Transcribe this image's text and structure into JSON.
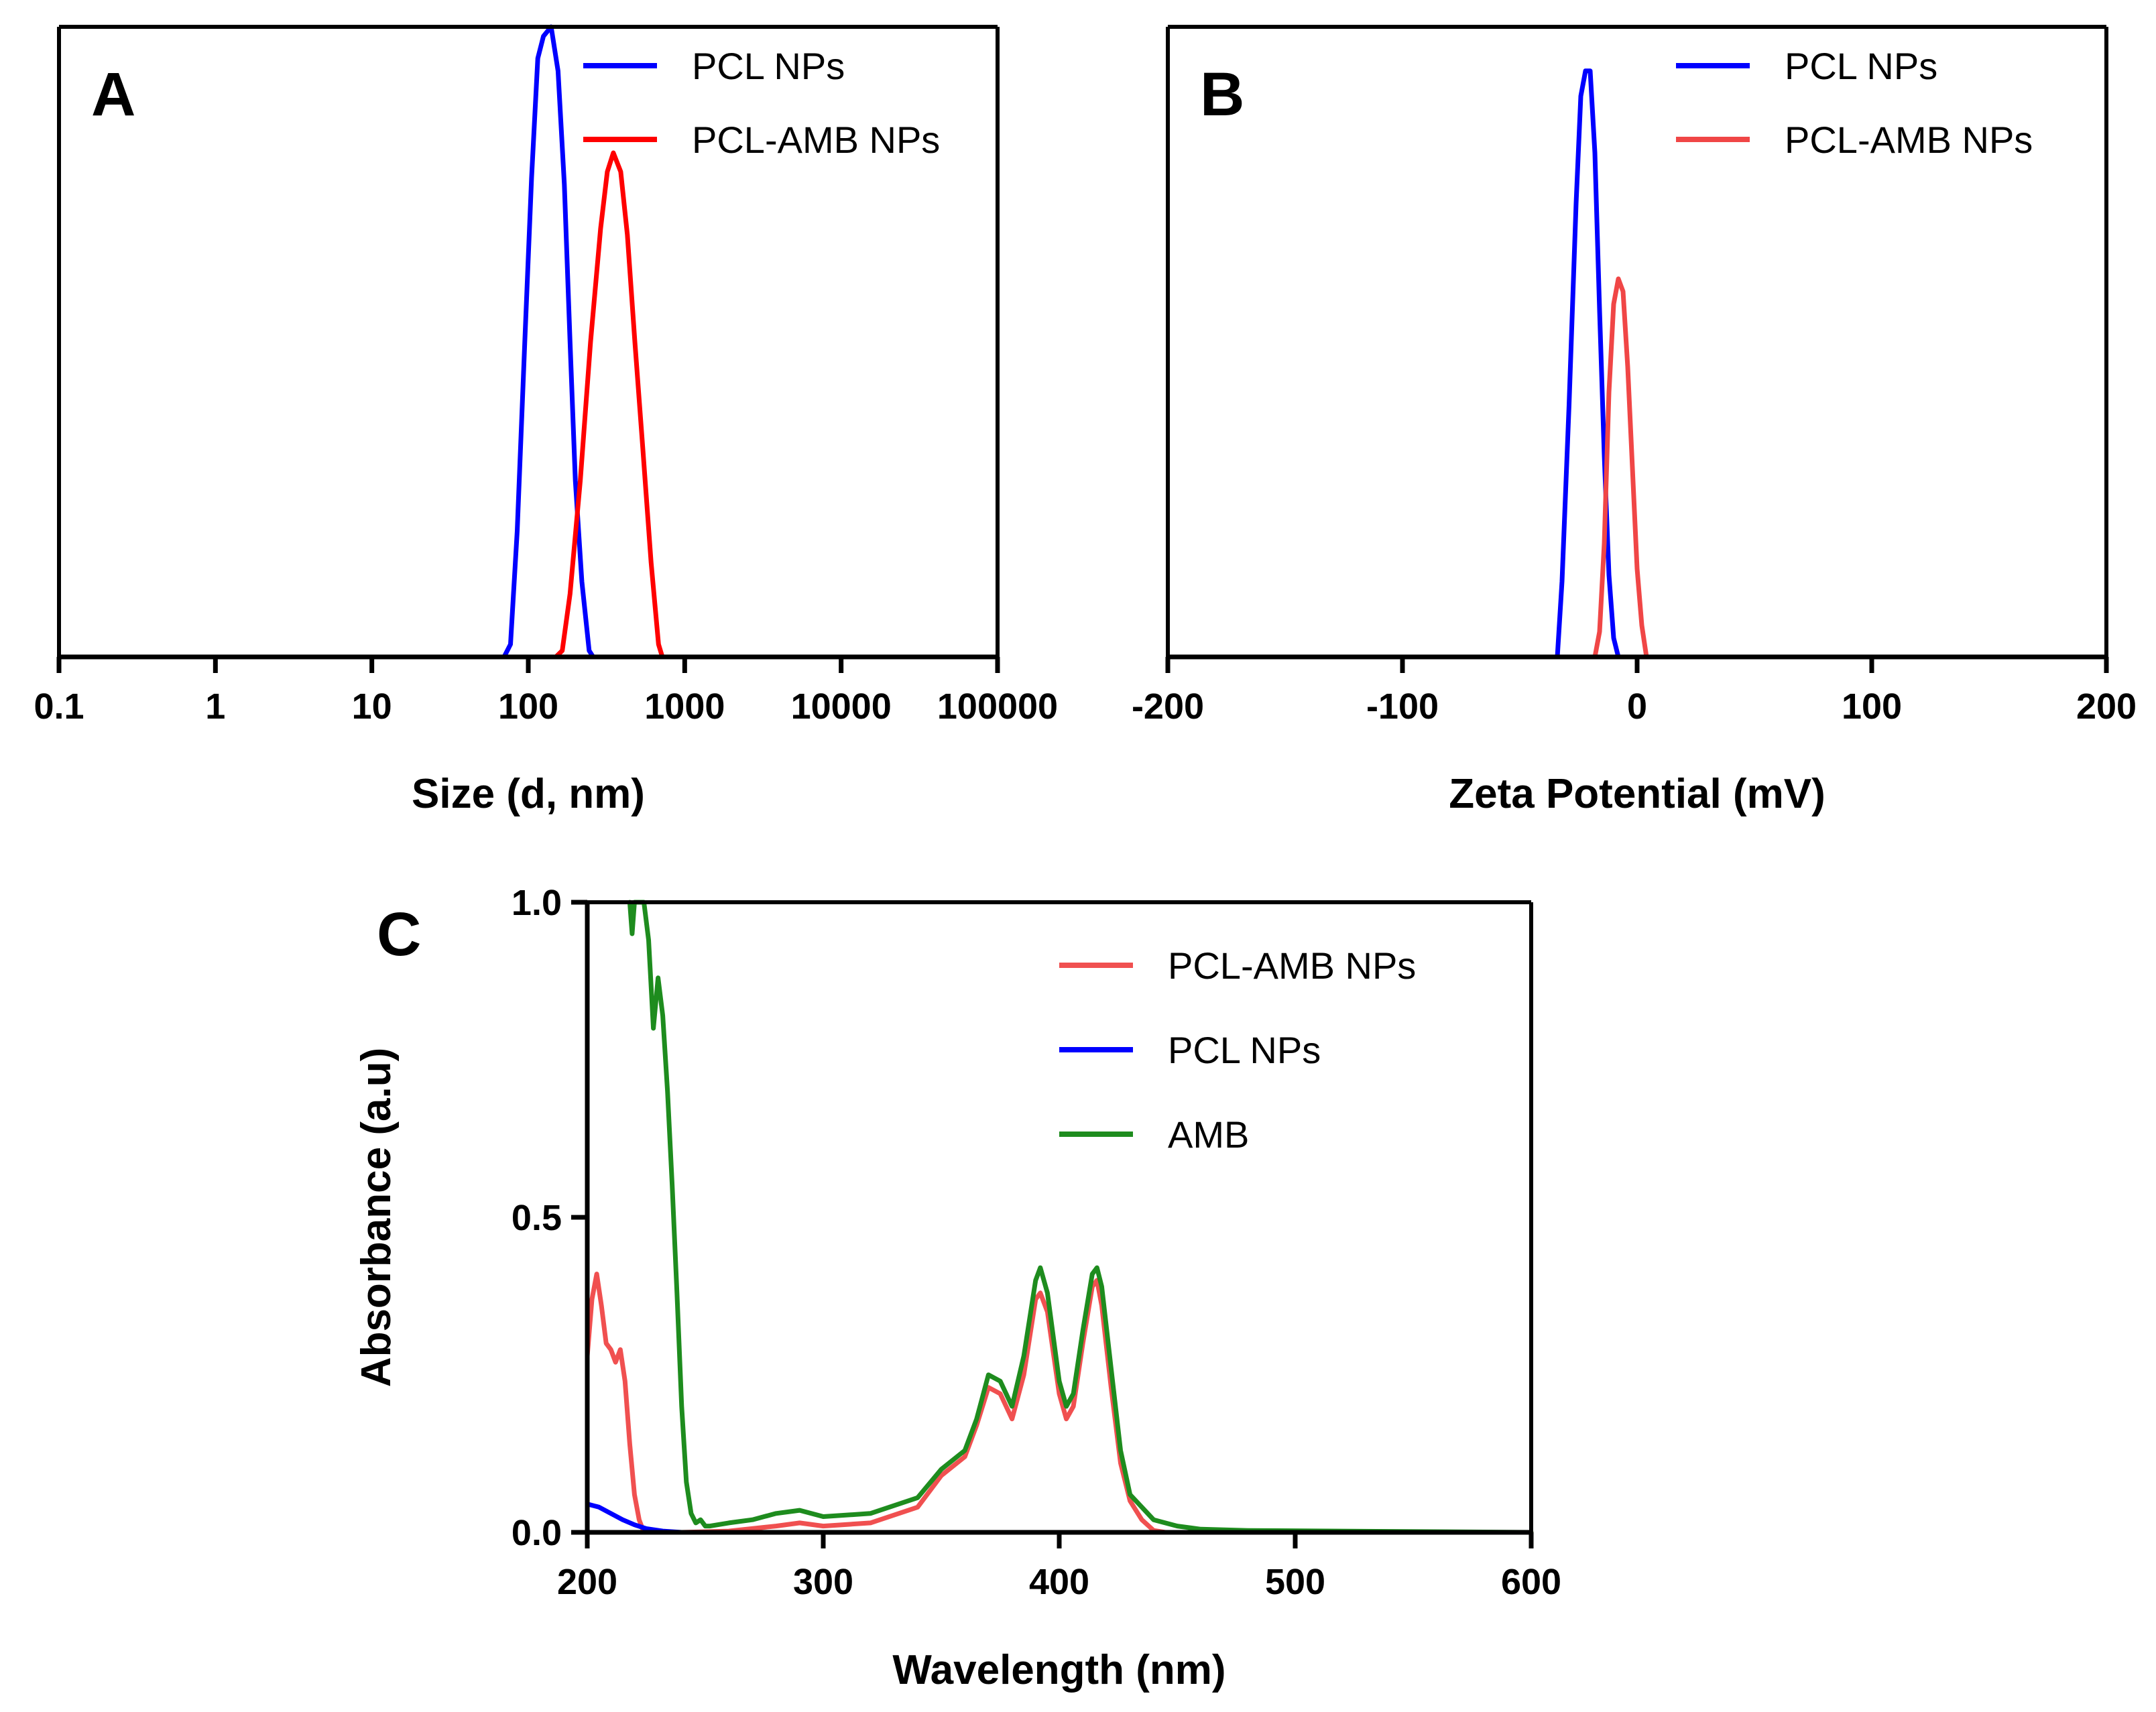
{
  "chart_data": [
    {
      "panel": "A",
      "type": "line",
      "title": "",
      "xlabel": "Size (d, nm)",
      "ylabel": "",
      "xscale": "log",
      "xlim": [
        0.1,
        100000
      ],
      "ylim": [
        0,
        1.0
      ],
      "xticks": [
        "0.1",
        "1",
        "10",
        "100",
        "1000",
        "10000",
        "100000"
      ],
      "legend_position": "top-right",
      "series": [
        {
          "name": "PCL NPs",
          "color": "#0000ff",
          "points": [
            [
              0.4,
              0
            ],
            [
              10,
              0
            ],
            [
              70,
              0
            ],
            [
              77,
              0.02
            ],
            [
              85,
              0.2
            ],
            [
              95,
              0.5
            ],
            [
              105,
              0.76
            ],
            [
              115,
              0.95
            ],
            [
              125,
              0.985
            ],
            [
              140,
              1.0
            ],
            [
              155,
              0.93
            ],
            [
              170,
              0.75
            ],
            [
              185,
              0.5
            ],
            [
              200,
              0.28
            ],
            [
              220,
              0.12
            ],
            [
              245,
              0.01
            ],
            [
              260,
              0
            ]
          ]
        },
        {
          "name": "PCL-AMB NPs",
          "color": "#ff0000",
          "points": [
            [
              70,
              0
            ],
            [
              150,
              0
            ],
            [
              165,
              0.01
            ],
            [
              185,
              0.1
            ],
            [
              215,
              0.28
            ],
            [
              250,
              0.5
            ],
            [
              290,
              0.68
            ],
            [
              320,
              0.77
            ],
            [
              350,
              0.8
            ],
            [
              390,
              0.77
            ],
            [
              430,
              0.67
            ],
            [
              480,
              0.5
            ],
            [
              540,
              0.33
            ],
            [
              610,
              0.15
            ],
            [
              680,
              0.02
            ],
            [
              720,
              0
            ],
            [
              10000,
              0
            ]
          ]
        }
      ]
    },
    {
      "panel": "B",
      "type": "line",
      "title": "",
      "xlabel": "Zeta Potential (mV)",
      "ylabel": "",
      "xlim": [
        -200,
        200
      ],
      "ylim": [
        0,
        1.0
      ],
      "xticks": [
        "-200",
        "-100",
        "0",
        "100",
        "200"
      ],
      "legend_position": "top-right",
      "series": [
        {
          "name": "PCL NPs",
          "color": "#0000ff",
          "points": [
            [
              -150,
              0
            ],
            [
              -34,
              0
            ],
            [
              -32,
              0.12
            ],
            [
              -29,
              0.4
            ],
            [
              -26,
              0.72
            ],
            [
              -24,
              0.89
            ],
            [
              -22,
              0.93
            ],
            [
              -20,
              0.93
            ],
            [
              -18,
              0.8
            ],
            [
              -16,
              0.55
            ],
            [
              -14,
              0.32
            ],
            [
              -12,
              0.13
            ],
            [
              -10,
              0.03
            ],
            [
              -8,
              0
            ],
            [
              150,
              0
            ]
          ]
        },
        {
          "name": "PCL-AMB NPs",
          "color": "#f04646",
          "points": [
            [
              -35,
              0
            ],
            [
              -18,
              0
            ],
            [
              -16,
              0.04
            ],
            [
              -14,
              0.18
            ],
            [
              -12,
              0.42
            ],
            [
              -10,
              0.56
            ],
            [
              -8,
              0.6
            ],
            [
              -6,
              0.58
            ],
            [
              -4,
              0.46
            ],
            [
              -2,
              0.3
            ],
            [
              0,
              0.14
            ],
            [
              2,
              0.05
            ],
            [
              4,
              0
            ],
            [
              6,
              0
            ]
          ]
        }
      ]
    },
    {
      "panel": "C",
      "type": "line",
      "title": "",
      "xlabel": "Wavelength (nm)",
      "ylabel": "Absorbance (a.u)",
      "xlim": [
        200,
        600
      ],
      "ylim": [
        0,
        1.0
      ],
      "xticks": [
        "200",
        "300",
        "400",
        "500",
        "600"
      ],
      "yticks": [
        "0.0",
        "0.5",
        "1.0"
      ],
      "legend_position": "top-right",
      "series": [
        {
          "name": "PCL-AMB NPs",
          "color": "#f05050",
          "points": [
            [
              200,
              0.28
            ],
            [
              202,
              0.37
            ],
            [
              204,
              0.41
            ],
            [
              206,
              0.36
            ],
            [
              208,
              0.3
            ],
            [
              210,
              0.29
            ],
            [
              212,
              0.27
            ],
            [
              214,
              0.29
            ],
            [
              216,
              0.24
            ],
            [
              218,
              0.14
            ],
            [
              220,
              0.06
            ],
            [
              222,
              0.02
            ],
            [
              224,
              0.0
            ],
            [
              240,
              0.0
            ],
            [
              260,
              0.002
            ],
            [
              280,
              0.01
            ],
            [
              290,
              0.015
            ],
            [
              300,
              0.01
            ],
            [
              320,
              0.015
            ],
            [
              340,
              0.04
            ],
            [
              350,
              0.09
            ],
            [
              360,
              0.12
            ],
            [
              365,
              0.17
            ],
            [
              370,
              0.23
            ],
            [
              375,
              0.22
            ],
            [
              380,
              0.18
            ],
            [
              385,
              0.25
            ],
            [
              390,
              0.37
            ],
            [
              392,
              0.38
            ],
            [
              395,
              0.35
            ],
            [
              400,
              0.22
            ],
            [
              403,
              0.18
            ],
            [
              406,
              0.2
            ],
            [
              410,
              0.3
            ],
            [
              414,
              0.39
            ],
            [
              416,
              0.4
            ],
            [
              418,
              0.36
            ],
            [
              422,
              0.23
            ],
            [
              426,
              0.11
            ],
            [
              430,
              0.05
            ],
            [
              435,
              0.02
            ],
            [
              440,
              0.003
            ],
            [
              445,
              0.0
            ],
            [
              600,
              0.0
            ]
          ]
        },
        {
          "name": "PCL NPs",
          "color": "#0000ff",
          "points": [
            [
              200,
              0.045
            ],
            [
              205,
              0.04
            ],
            [
              210,
              0.03
            ],
            [
              215,
              0.02
            ],
            [
              220,
              0.012
            ],
            [
              225,
              0.006
            ],
            [
              232,
              0.002
            ],
            [
              240,
              0.0
            ],
            [
              245,
              0.0
            ]
          ]
        },
        {
          "name": "AMB",
          "color": "#1e8c1e",
          "points": [
            [
              218,
              1.0
            ],
            [
              219,
              0.95
            ],
            [
              220,
              1.0
            ],
            [
              224,
              1.0
            ],
            [
              226,
              0.94
            ],
            [
              228,
              0.8
            ],
            [
              230,
              0.88
            ],
            [
              232,
              0.82
            ],
            [
              234,
              0.7
            ],
            [
              236,
              0.55
            ],
            [
              238,
              0.38
            ],
            [
              240,
              0.2
            ],
            [
              242,
              0.08
            ],
            [
              244,
              0.03
            ],
            [
              246,
              0.015
            ],
            [
              248,
              0.02
            ],
            [
              250,
              0.01
            ],
            [
              252,
              0.01
            ],
            [
              260,
              0.015
            ],
            [
              270,
              0.02
            ],
            [
              280,
              0.03
            ],
            [
              290,
              0.035
            ],
            [
              300,
              0.025
            ],
            [
              320,
              0.03
            ],
            [
              340,
              0.055
            ],
            [
              350,
              0.1
            ],
            [
              360,
              0.13
            ],
            [
              365,
              0.18
            ],
            [
              370,
              0.25
            ],
            [
              375,
              0.24
            ],
            [
              380,
              0.2
            ],
            [
              385,
              0.28
            ],
            [
              390,
              0.4
            ],
            [
              392,
              0.42
            ],
            [
              395,
              0.38
            ],
            [
              400,
              0.24
            ],
            [
              403,
              0.2
            ],
            [
              406,
              0.22
            ],
            [
              410,
              0.32
            ],
            [
              414,
              0.41
            ],
            [
              416,
              0.42
            ],
            [
              418,
              0.39
            ],
            [
              422,
              0.26
            ],
            [
              426,
              0.13
            ],
            [
              430,
              0.06
            ],
            [
              440,
              0.02
            ],
            [
              450,
              0.01
            ],
            [
              460,
              0.005
            ],
            [
              480,
              0.003
            ],
            [
              600,
              0.0
            ]
          ]
        }
      ]
    }
  ]
}
